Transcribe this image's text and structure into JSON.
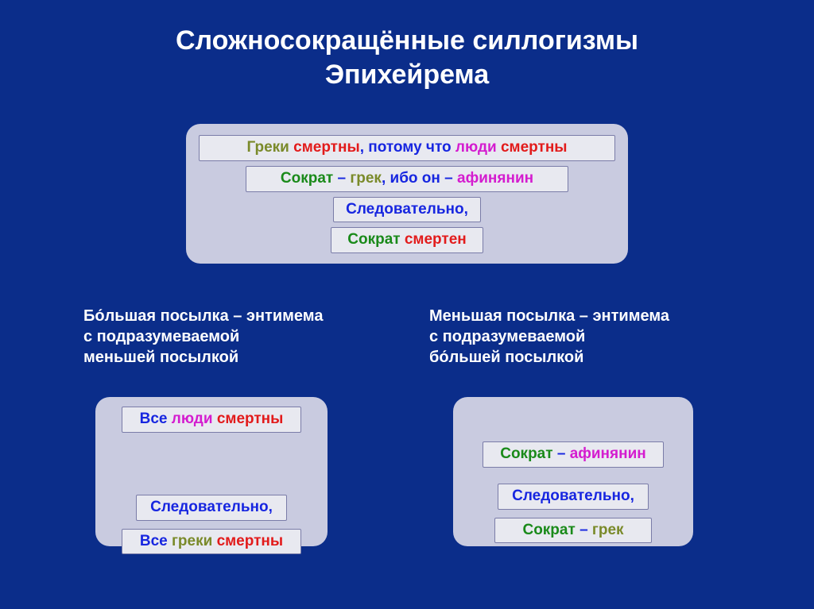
{
  "colors": {
    "bg": "#0b2d8a",
    "panel": "#c9cbe0",
    "lineBg": "#e8e9f0",
    "lineBorder": "#7a7ca8",
    "white": "#ffffff",
    "olive": "#7a8a2a",
    "red": "#e21b1b",
    "blue": "#1726e0",
    "magenta": "#d41ccf",
    "green": "#1a8a1a",
    "darkgreen": "#2a6a2a"
  },
  "title": {
    "line1": "Сложносокращённые силлогизмы",
    "line2": "Эпихейрема"
  },
  "top": {
    "l1": [
      {
        "t": "Греки ",
        "c": "olive"
      },
      {
        "t": "смертны",
        "c": "red"
      },
      {
        "t": ", ",
        "c": "blue"
      },
      {
        "t": "потому что ",
        "c": "blue"
      },
      {
        "t": "люди ",
        "c": "magenta"
      },
      {
        "t": "смертны",
        "c": "red"
      }
    ],
    "l2": [
      {
        "t": "Сократ ",
        "c": "green"
      },
      {
        "t": "– ",
        "c": "blue"
      },
      {
        "t": "грек",
        "c": "olive"
      },
      {
        "t": ", ибо он – ",
        "c": "blue"
      },
      {
        "t": "афинянин",
        "c": "magenta"
      }
    ],
    "l3": [
      {
        "t": "Следовательно,",
        "c": "blue"
      }
    ],
    "l4": [
      {
        "t": "Сократ ",
        "c": "green"
      },
      {
        "t": "смертен",
        "c": "red"
      }
    ]
  },
  "caption_left": {
    "l1": "Бо́льшая посылка – энтимема",
    "l2": "с подразумеваемой",
    "l3": "меньшей посылкой"
  },
  "caption_right": {
    "l1": "Меньшая посылка – энтимема",
    "l2": "с подразумеваемой",
    "l3": "бо́льшей посылкой"
  },
  "left": {
    "l1": [
      {
        "t": "Все ",
        "c": "blue"
      },
      {
        "t": "люди ",
        "c": "magenta"
      },
      {
        "t": "смертны",
        "c": "red"
      }
    ],
    "l2": [
      {
        "t": "Следовательно,",
        "c": "blue"
      }
    ],
    "l3": [
      {
        "t": "Все ",
        "c": "blue"
      },
      {
        "t": "греки ",
        "c": "olive"
      },
      {
        "t": "смертны",
        "c": "red"
      }
    ]
  },
  "right": {
    "l1": [
      {
        "t": "Сократ ",
        "c": "green"
      },
      {
        "t": "– ",
        "c": "blue"
      },
      {
        "t": "афинянин",
        "c": "magenta"
      }
    ],
    "l2": [
      {
        "t": "Следовательно,",
        "c": "blue"
      }
    ],
    "l3": [
      {
        "t": "Сократ ",
        "c": "green"
      },
      {
        "t": "– ",
        "c": "blue"
      },
      {
        "t": "грек",
        "c": "olive"
      }
    ]
  },
  "layout": {
    "top_line_widths": [
      524,
      406,
      186,
      192
    ],
    "top_line_gaps": [
      0,
      6,
      6,
      6
    ],
    "left_line_widths": [
      226,
      190,
      226
    ],
    "left_line_tops": [
      0,
      78,
      20
    ],
    "right_line_widths": [
      228,
      190,
      198
    ],
    "right_line_tops": [
      44,
      20,
      20
    ]
  }
}
